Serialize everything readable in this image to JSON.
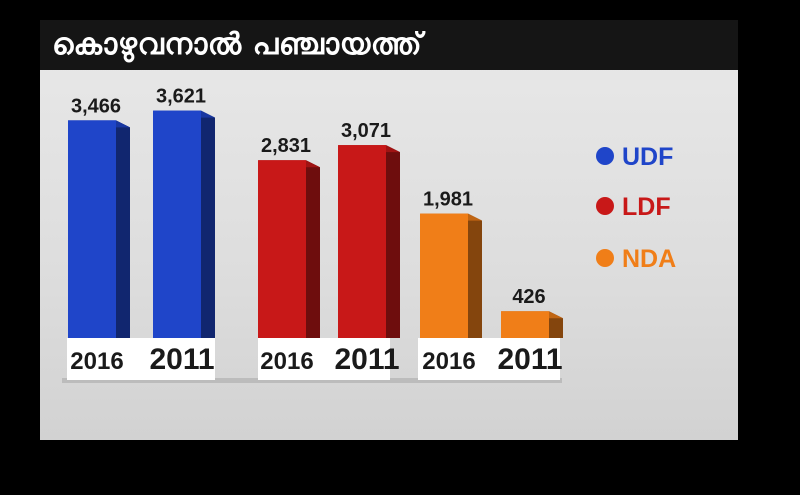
{
  "title": "കൊഴുവനാൽ പഞ്ചായത്ത്",
  "chart_data": {
    "type": "bar",
    "title": "കൊഴുവനാൽ പഞ്ചായത്ത്",
    "groups": [
      {
        "name": "UDF",
        "color": "#1f45c9",
        "bars": [
          {
            "year": "2016",
            "value": 3466,
            "label": "3,466"
          },
          {
            "year": "2011",
            "value": 3621,
            "label": "3,621"
          }
        ]
      },
      {
        "name": "LDF",
        "color": "#c81818",
        "bars": [
          {
            "year": "2016",
            "value": 2831,
            "label": "2,831"
          },
          {
            "year": "2011",
            "value": 3071,
            "label": "3,071"
          }
        ]
      },
      {
        "name": "NDA",
        "color": "#f07e18",
        "bars": [
          {
            "year": "2016",
            "value": 1981,
            "label": "1,981"
          },
          {
            "year": "2011",
            "value": 426,
            "label": "426"
          }
        ]
      }
    ],
    "legend": [
      {
        "name": "UDF",
        "color": "#1f45c9"
      },
      {
        "name": "LDF",
        "color": "#c81818"
      },
      {
        "name": "NDA",
        "color": "#f07e18"
      }
    ],
    "legend_position": "right",
    "grid": false
  }
}
